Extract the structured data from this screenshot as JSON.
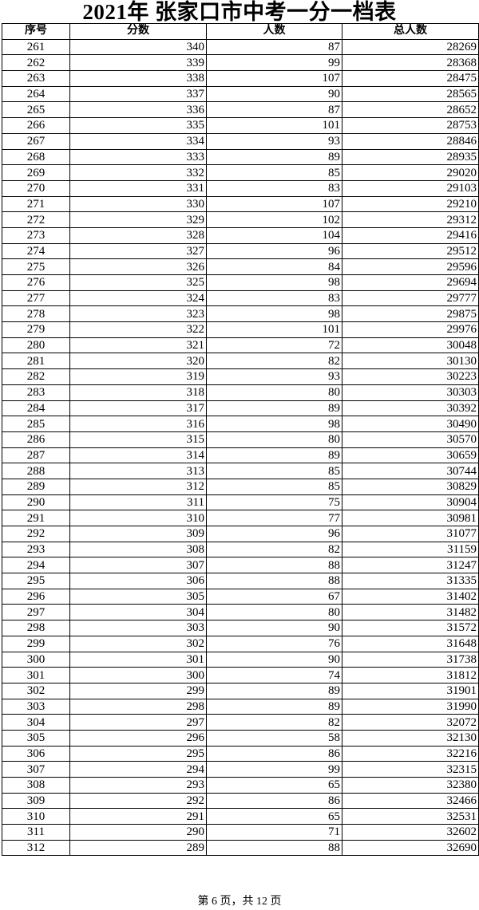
{
  "title": "2021年  张家口市中考一分一档表",
  "table": {
    "headers": [
      "序号",
      "分数",
      "人数",
      "总人数"
    ],
    "rows": [
      [
        "261",
        "340",
        "87",
        "28269"
      ],
      [
        "262",
        "339",
        "99",
        "28368"
      ],
      [
        "263",
        "338",
        "107",
        "28475"
      ],
      [
        "264",
        "337",
        "90",
        "28565"
      ],
      [
        "265",
        "336",
        "87",
        "28652"
      ],
      [
        "266",
        "335",
        "101",
        "28753"
      ],
      [
        "267",
        "334",
        "93",
        "28846"
      ],
      [
        "268",
        "333",
        "89",
        "28935"
      ],
      [
        "269",
        "332",
        "85",
        "29020"
      ],
      [
        "270",
        "331",
        "83",
        "29103"
      ],
      [
        "271",
        "330",
        "107",
        "29210"
      ],
      [
        "272",
        "329",
        "102",
        "29312"
      ],
      [
        "273",
        "328",
        "104",
        "29416"
      ],
      [
        "274",
        "327",
        "96",
        "29512"
      ],
      [
        "275",
        "326",
        "84",
        "29596"
      ],
      [
        "276",
        "325",
        "98",
        "29694"
      ],
      [
        "277",
        "324",
        "83",
        "29777"
      ],
      [
        "278",
        "323",
        "98",
        "29875"
      ],
      [
        "279",
        "322",
        "101",
        "29976"
      ],
      [
        "280",
        "321",
        "72",
        "30048"
      ],
      [
        "281",
        "320",
        "82",
        "30130"
      ],
      [
        "282",
        "319",
        "93",
        "30223"
      ],
      [
        "283",
        "318",
        "80",
        "30303"
      ],
      [
        "284",
        "317",
        "89",
        "30392"
      ],
      [
        "285",
        "316",
        "98",
        "30490"
      ],
      [
        "286",
        "315",
        "80",
        "30570"
      ],
      [
        "287",
        "314",
        "89",
        "30659"
      ],
      [
        "288",
        "313",
        "85",
        "30744"
      ],
      [
        "289",
        "312",
        "85",
        "30829"
      ],
      [
        "290",
        "311",
        "75",
        "30904"
      ],
      [
        "291",
        "310",
        "77",
        "30981"
      ],
      [
        "292",
        "309",
        "96",
        "31077"
      ],
      [
        "293",
        "308",
        "82",
        "31159"
      ],
      [
        "294",
        "307",
        "88",
        "31247"
      ],
      [
        "295",
        "306",
        "88",
        "31335"
      ],
      [
        "296",
        "305",
        "67",
        "31402"
      ],
      [
        "297",
        "304",
        "80",
        "31482"
      ],
      [
        "298",
        "303",
        "90",
        "31572"
      ],
      [
        "299",
        "302",
        "76",
        "31648"
      ],
      [
        "300",
        "301",
        "90",
        "31738"
      ],
      [
        "301",
        "300",
        "74",
        "31812"
      ],
      [
        "302",
        "299",
        "89",
        "31901"
      ],
      [
        "303",
        "298",
        "89",
        "31990"
      ],
      [
        "304",
        "297",
        "82",
        "32072"
      ],
      [
        "305",
        "296",
        "58",
        "32130"
      ],
      [
        "306",
        "295",
        "86",
        "32216"
      ],
      [
        "307",
        "294",
        "99",
        "32315"
      ],
      [
        "308",
        "293",
        "65",
        "32380"
      ],
      [
        "309",
        "292",
        "86",
        "32466"
      ],
      [
        "310",
        "291",
        "65",
        "32531"
      ],
      [
        "311",
        "290",
        "71",
        "32602"
      ],
      [
        "312",
        "289",
        "88",
        "32690"
      ]
    ]
  },
  "footer": "第 6 页，共 12 页"
}
